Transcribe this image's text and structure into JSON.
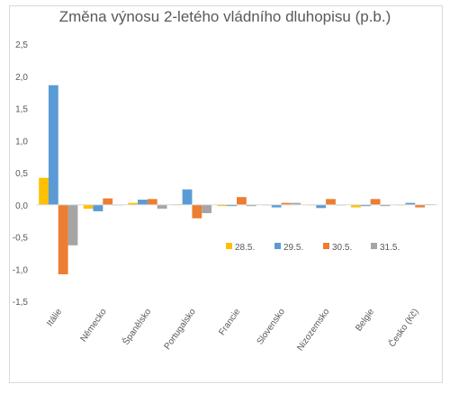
{
  "chart_data": {
    "type": "bar",
    "title": "Změna výnosu 2-letého vládního dluhopisu (p.b.)",
    "xlabel": "",
    "ylabel": "",
    "ylim": [
      -1.5,
      2.5
    ],
    "yticks": [
      2.5,
      2.0,
      1.5,
      1.0,
      0.5,
      0.0,
      -0.5,
      -1.0,
      -1.5
    ],
    "ytick_labels": [
      "2,5",
      "2,0",
      "1,5",
      "1,0",
      "0,5",
      "0,0",
      "-0,5",
      "-1,0",
      "-1,5"
    ],
    "grid": false,
    "legend_position": "right-middle",
    "categories": [
      "Itálie",
      "Německo",
      "Španělsko",
      "Portugalsko",
      "Francie",
      "Slovensko",
      "Nizozemsko",
      "Belgie",
      "Česko (Kč)"
    ],
    "series": [
      {
        "name": "28.5.",
        "color": "#FFC000",
        "values": [
          0.42,
          -0.06,
          0.03,
          0.01,
          -0.02,
          0.0,
          0.0,
          -0.04,
          0.0
        ]
      },
      {
        "name": "29.5.",
        "color": "#5B9BD5",
        "values": [
          1.86,
          -0.1,
          0.08,
          0.24,
          -0.02,
          -0.04,
          -0.05,
          -0.02,
          0.03
        ]
      },
      {
        "name": "30.5.",
        "color": "#ED7D31",
        "values": [
          -1.08,
          0.1,
          0.09,
          -0.21,
          0.12,
          0.03,
          0.09,
          0.09,
          -0.04
        ]
      },
      {
        "name": "31.5.",
        "color": "#A5A5A5",
        "values": [
          -0.63,
          0.0,
          -0.06,
          -0.13,
          -0.02,
          0.03,
          0.0,
          -0.02,
          0.01
        ]
      }
    ]
  }
}
